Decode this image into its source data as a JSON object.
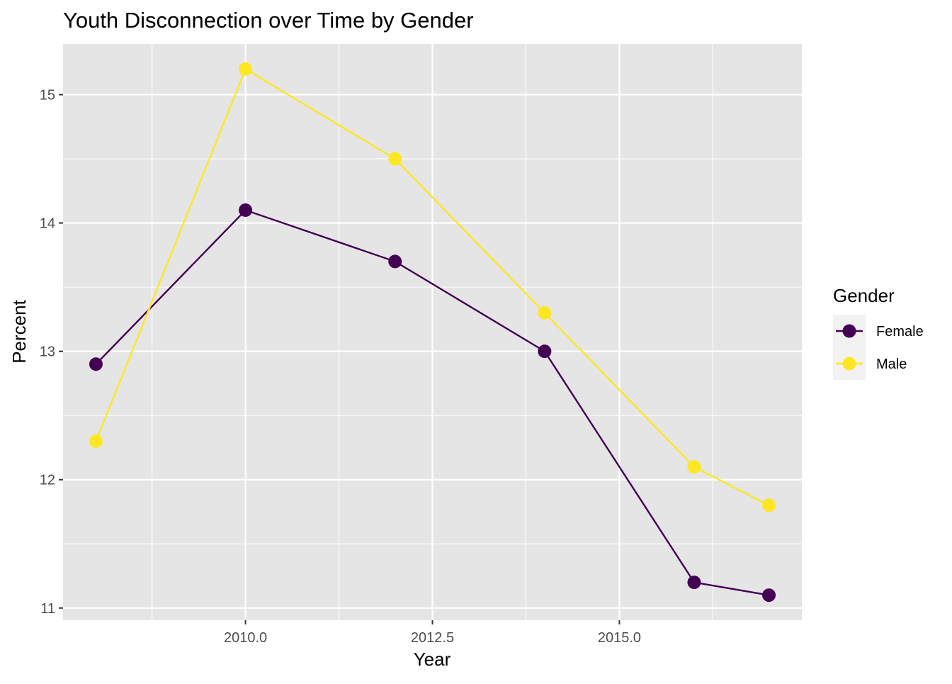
{
  "chart_data": {
    "type": "line",
    "title": "Youth Disconnection over Time by Gender",
    "xlabel": "Year",
    "ylabel": "Percent",
    "x": [
      2008,
      2010,
      2012,
      2014,
      2016,
      2017
    ],
    "series": [
      {
        "name": "Female",
        "color": "#440154",
        "values": [
          12.9,
          14.1,
          13.7,
          13.0,
          11.2,
          11.1
        ]
      },
      {
        "name": "Male",
        "color": "#FDE725",
        "values": [
          12.3,
          15.2,
          14.5,
          13.3,
          12.1,
          11.8
        ]
      }
    ],
    "xlim": [
      2007.56,
      2017.44
    ],
    "ylim": [
      10.905,
      15.395
    ],
    "x_ticks": [
      2010.0,
      2012.5,
      2015.0
    ],
    "x_tick_labels": [
      "2010.0",
      "2012.5",
      "2015.0"
    ],
    "y_ticks": [
      11,
      12,
      13,
      14,
      15
    ],
    "y_tick_labels": [
      "11",
      "12",
      "13",
      "14",
      "15"
    ],
    "legend": {
      "title": "Gender",
      "position": "right"
    },
    "grid": true,
    "panel_background": "#E5E5E5",
    "grid_color": "#FFFFFF"
  }
}
